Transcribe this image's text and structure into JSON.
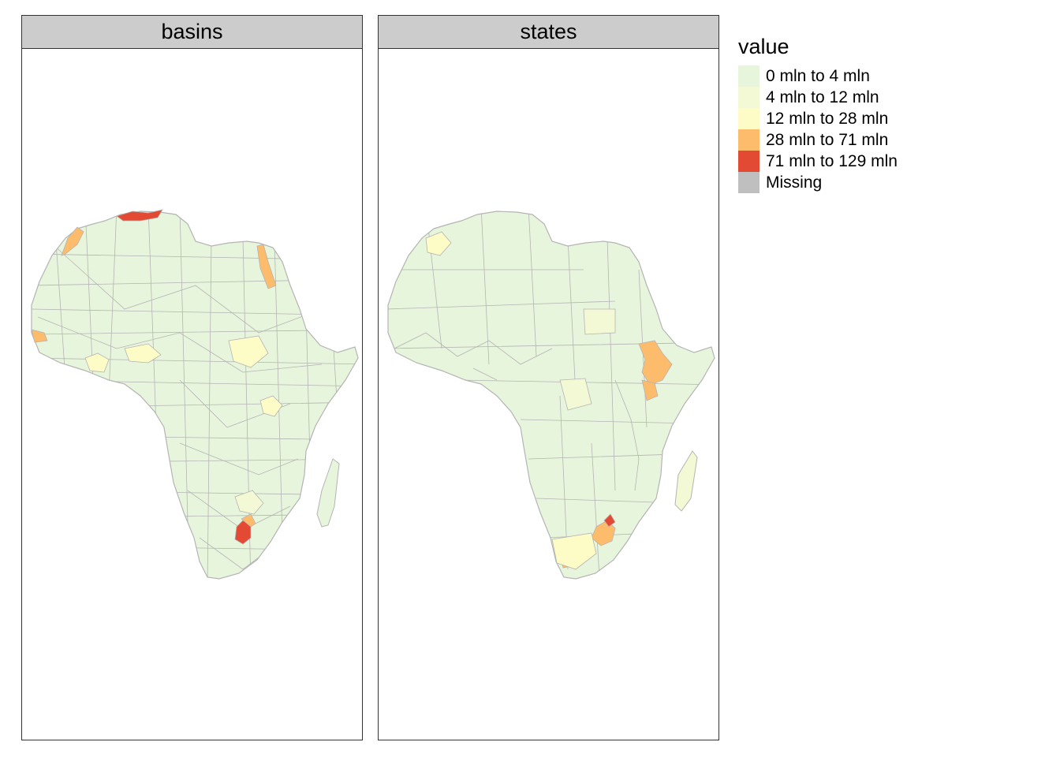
{
  "facets": [
    {
      "id": "basins",
      "label": "basins"
    },
    {
      "id": "states",
      "label": "states"
    }
  ],
  "legend": {
    "title": "value",
    "items": [
      {
        "label": "0 mln to 4 mln",
        "color": "#e8f5dd"
      },
      {
        "label": "4 mln to 12 mln",
        "color": "#f3f9d4"
      },
      {
        "label": "12 mln to 28 mln",
        "color": "#fdfbc6"
      },
      {
        "label": "28 mln to 71 mln",
        "color": "#fdbb6c"
      },
      {
        "label": "71 mln to 129 mln",
        "color": "#e34a33"
      },
      {
        "label": "Missing",
        "color": "#bfbfbf"
      }
    ]
  },
  "colors": {
    "strip_background": "#cccccc",
    "region_border": "#b4b4b4",
    "panel_border": "#333333"
  }
}
